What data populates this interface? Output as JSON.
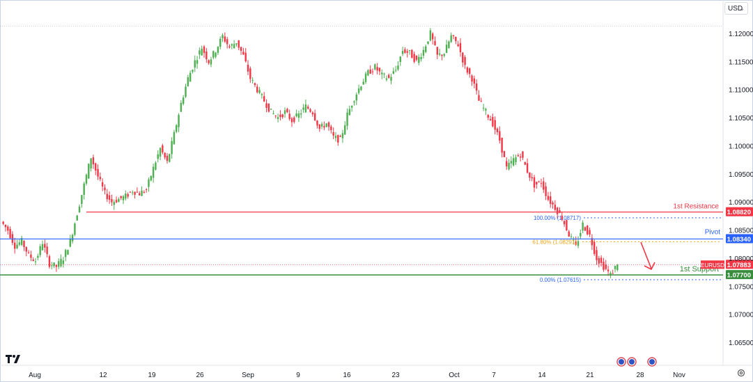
{
  "chart_data": {
    "type": "candlestick",
    "symbol": "EURUSD",
    "currency": "USD",
    "ylim": [
      1.0615,
      1.1225
    ],
    "y_ticks": [
      "1.12000",
      "1.11500",
      "1.11000",
      "1.10500",
      "1.10000",
      "1.09500",
      "1.09000",
      "1.08500",
      "1.08000",
      "1.07500",
      "1.07000",
      "1.06500"
    ],
    "x_ticks": [
      "Aug",
      "12",
      "19",
      "26",
      "Sep",
      "9",
      "16",
      "23",
      "Oct",
      "7",
      "14",
      "21",
      "28",
      "Nov"
    ],
    "close_path": [
      1.0865,
      1.085,
      1.0822,
      1.083,
      1.0805,
      1.0795,
      1.0828,
      1.079,
      1.0785,
      1.08,
      1.083,
      1.088,
      1.093,
      1.098,
      1.0945,
      1.0915,
      1.09,
      1.0905,
      1.091,
      1.092,
      1.0915,
      1.0922,
      1.096,
      1.0995,
      1.097,
      1.102,
      1.1075,
      1.112,
      1.115,
      1.1175,
      1.115,
      1.117,
      1.1195,
      1.1175,
      1.1185,
      1.116,
      1.112,
      1.11,
      1.108,
      1.106,
      1.105,
      1.106,
      1.1045,
      1.1055,
      1.107,
      1.106,
      1.103,
      1.104,
      1.1015,
      1.101,
      1.1055,
      1.1085,
      1.111,
      1.113,
      1.114,
      1.1125,
      1.112,
      1.1135,
      1.117,
      1.1165,
      1.115,
      1.117,
      1.12,
      1.116,
      1.1165,
      1.1195,
      1.118,
      1.114,
      1.112,
      1.108,
      1.106,
      1.104,
      1.101,
      1.096,
      1.0975,
      1.0985,
      1.0955,
      1.093,
      1.0935,
      1.0905,
      1.089,
      1.0872,
      1.0842,
      1.082,
      1.086,
      1.084,
      1.08,
      1.0785,
      1.077,
      1.079
    ],
    "annotations": {
      "resistance": {
        "label": "1st Resistance",
        "value": 1.0882,
        "value_label": "1.08820",
        "color": "#f23645"
      },
      "pivot": {
        "label": "Pivot",
        "value": 1.0834,
        "value_label": "1.08340",
        "color": "#2962ff"
      },
      "support": {
        "label": "1st Support",
        "value": 1.077,
        "value_label": "1.07700",
        "color": "#388e3c"
      },
      "last_price": {
        "label": "EURUSD",
        "value": 1.07883,
        "value_label": "1.07883",
        "color": "#f23645"
      },
      "fib_100": {
        "label": "100.00% (1.08717)",
        "value": 1.08717,
        "color": "#2962ff"
      },
      "fib_618": {
        "label": "61.80% (1.08291)",
        "value": 1.08291,
        "color": "#f2a218"
      },
      "fib_0": {
        "label": "0.00% (1.07615)",
        "value": 1.07615,
        "color": "#2962ff"
      },
      "top_dotted": {
        "value": 1.1213
      }
    },
    "colors": {
      "up": "#4caf50",
      "down": "#f23645",
      "axis_text": "#131722"
    }
  }
}
